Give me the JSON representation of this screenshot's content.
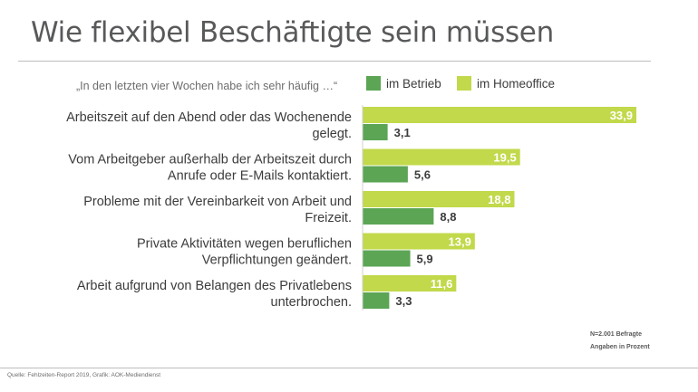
{
  "title": "Wie flexibel Beschäftigte sein müssen",
  "subtitle": "„In den letzten vier Wochen habe ich sehr häufig …“",
  "notes": [
    "N=2.001 Befragte",
    "Angaben in Prozent"
  ],
  "source": "Quelle: Fehlzeiten-Report 2019, Grafik: AOK-Mediendienst",
  "colors": {
    "betrieb": "#5ba555",
    "homeoffice": "#c1d94a"
  },
  "chart_data": {
    "type": "bar",
    "orientation": "horizontal",
    "categories": [
      [
        "Arbeitszeit auf den Abend oder das Wochenende",
        "gelegt."
      ],
      [
        "Vom Arbeitgeber außerhalb der Arbeitszeit durch",
        "Anrufe oder E-Mails kontaktiert."
      ],
      [
        "Probleme mit der Vereinbarkeit von Arbeit und",
        "Freizeit."
      ],
      [
        "Private Aktivitäten wegen beruflichen",
        "Verpflichtungen geändert."
      ],
      [
        "Arbeit aufgrund von Belangen des Privatlebens",
        "unterbrochen."
      ]
    ],
    "series": [
      {
        "name": "im Betrieb",
        "values": [
          3.1,
          5.6,
          8.8,
          5.9,
          3.3
        ],
        "labels": [
          "3,1",
          "5,6",
          "8,8",
          "5,9",
          "3,3"
        ]
      },
      {
        "name": "im Homeoffice",
        "values": [
          33.9,
          19.5,
          18.8,
          13.9,
          11.6
        ],
        "labels": [
          "33,9",
          "19,5",
          "18,8",
          "13,9",
          "11,6"
        ]
      }
    ],
    "xlim": [
      0,
      35
    ],
    "legend": "top"
  }
}
